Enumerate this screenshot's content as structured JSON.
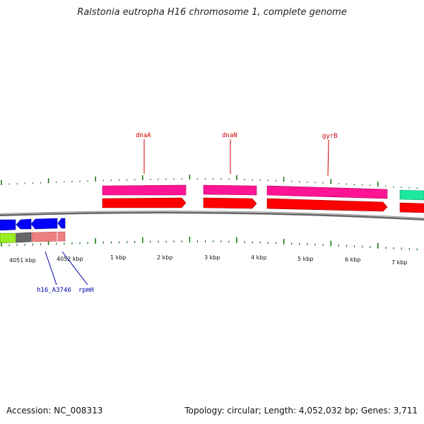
{
  "title": "Ralstonia eutropha H16 chromosome 1, complete genome",
  "footer": {
    "accession": "Accession: NC_008313",
    "summary": "Topology: circular; Length: 4,052,032 bp; Genes: 3,711"
  },
  "colors": {
    "backbone": "#8a8a8a",
    "tick": "#1a7a1a",
    "label_top": "#cc0000",
    "label_bottom": "#0000aa",
    "gene_forward": "#ff0000",
    "feature_pink": "#ff1493",
    "feature_teal": "#1ee8a0",
    "gene_reverse": "#0000ff",
    "feature_green": "#99ee22",
    "feature_gray": "#666666",
    "feature_salmon": "#ee8080"
  },
  "scale_labels": [
    "4051 kbp",
    "4052 kbp",
    "1 kbp",
    "2 kbp",
    "3 kbp",
    "4 kbp",
    "5 kbp",
    "6 kbp",
    "7 kbp"
  ],
  "gene_labels_top": [
    "dnaA",
    "dnaN",
    "gyrB"
  ],
  "gene_labels_bottom": [
    "h16_A3746",
    "rpmH"
  ]
}
